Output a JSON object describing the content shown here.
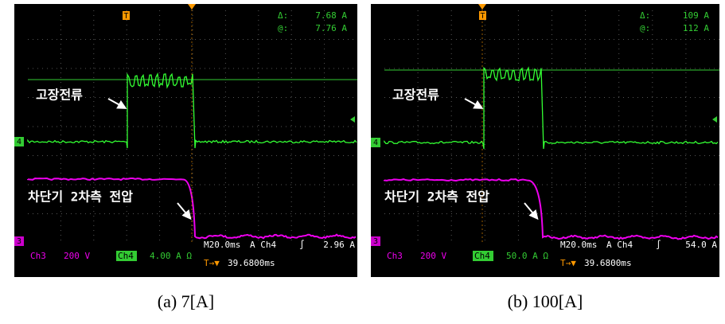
{
  "panels": [
    {
      "caption": "(a)  7[A]",
      "marker_trigger": "T",
      "delta": "Δ:",
      "delta_value": "7.68 A",
      "at": "@:",
      "at_value": "7.76 A",
      "label_current": "고장전류",
      "label_voltage": "차단기 2차측 전압",
      "marker_ch4": "4",
      "marker_ch3": "3",
      "ch3": "Ch3",
      "ch3_scale": "200 V",
      "ch4": "Ch4",
      "ch4_scale": "4.00 A Ω",
      "timebase": "M20.0ms",
      "trigger_src": "A  Ch4",
      "trigger_slope": "∫",
      "trigger_level": "2.96 A",
      "trigger_mark": "T→▼",
      "trigger_pos": "39.6800ms"
    },
    {
      "caption": "(b)  100[A]",
      "marker_trigger": "T",
      "delta": "Δ:",
      "delta_value": "109 A",
      "at": "@:",
      "at_value": "112 A",
      "label_current": "고장전류",
      "label_voltage": "차단기 2차측 전압",
      "marker_ch4": "4",
      "marker_ch3": "3",
      "ch3": "Ch3",
      "ch3_scale": "200 V",
      "ch4": "Ch4",
      "ch4_scale": "50.0 A Ω",
      "timebase": "M20.0ms",
      "trigger_src": "A  Ch4",
      "trigger_slope": "∫",
      "trigger_level": "54.0 A",
      "trigger_mark": "T→▼",
      "trigger_pos": "39.6800ms"
    }
  ]
}
